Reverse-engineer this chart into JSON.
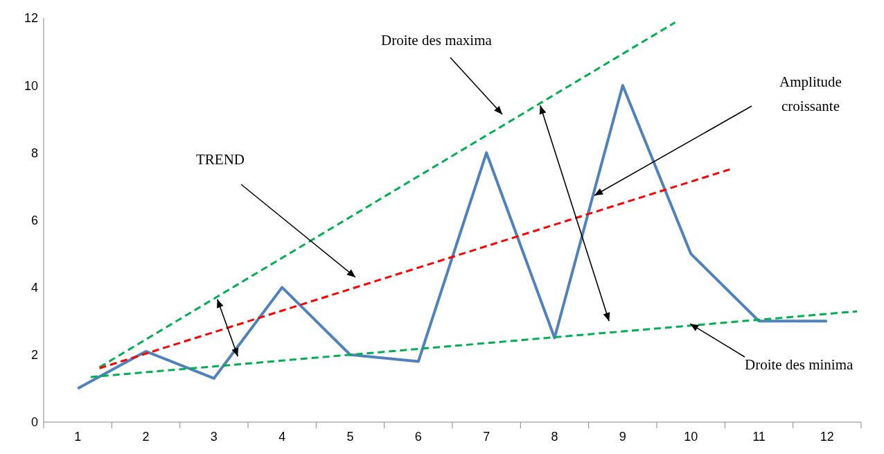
{
  "chart_data": {
    "type": "line",
    "x": [
      1,
      2,
      3,
      4,
      5,
      6,
      7,
      8,
      9,
      10,
      11,
      12
    ],
    "series": [
      {
        "color": "#4f81bd",
        "line_style": "solid",
        "values": [
          1,
          2.1,
          1.3,
          4,
          2,
          1.8,
          8,
          2.5,
          10,
          5,
          3,
          3
        ]
      },
      {
        "color": "#00b050",
        "line_style": "dashed",
        "x": [
          1.32,
          9.77
        ],
        "values": [
          1.63,
          11.87
        ]
      },
      {
        "color": "#ff0000",
        "line_style": "dashed",
        "x": [
          1.32,
          10.58
        ],
        "values": [
          1.6,
          7.51
        ]
      },
      {
        "color": "#00b050",
        "line_style": "dashed",
        "x": [
          1.19,
          12.44
        ],
        "values": [
          1.34,
          3.29
        ]
      }
    ],
    "xlim": [
      0.5,
      12.5
    ],
    "xticks": [
      {
        "value": 0.5,
        "label": null
      },
      1,
      {
        "value": 1.5,
        "label": null
      },
      2,
      {
        "value": 2.5,
        "label": null
      },
      3,
      {
        "value": 3.5,
        "label": null
      },
      4,
      {
        "value": 4.5,
        "label": null
      },
      5,
      {
        "value": 5.5,
        "label": null
      },
      6,
      {
        "value": 6.5,
        "label": null
      },
      7,
      {
        "value": 7.5,
        "label": null
      },
      8,
      {
        "value": 8.5,
        "label": null
      },
      9,
      {
        "value": 9.5,
        "label": null
      },
      10,
      {
        "value": 10.5,
        "label": null
      },
      11,
      {
        "value": 11.5,
        "label": null
      },
      12,
      {
        "value": 12.5,
        "label": null
      }
    ],
    "ylim": [
      0,
      12
    ],
    "yticks": [
      0,
      2,
      4,
      6,
      8,
      10,
      12
    ],
    "grid": false,
    "legend": false,
    "marker": "none",
    "annotations": [
      "Droite des maxima",
      "TREND",
      "Amplitude croissante",
      {
        "text": "Droite des minima",
        "x": 9.99,
        "y": 2.92
      }
    ]
  }
}
